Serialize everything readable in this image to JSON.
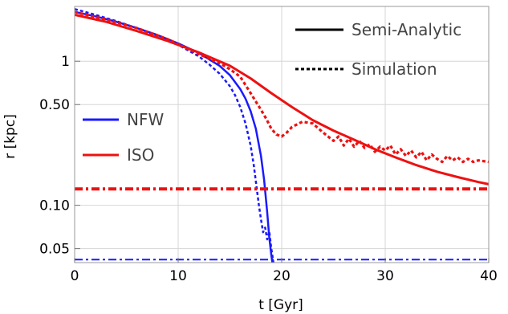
{
  "chart_data": {
    "type": "line",
    "xlabel": "t [Gyr]",
    "ylabel": "r [kpc]",
    "xlim": [
      0,
      40
    ],
    "ylim": [
      0.04,
      2.4
    ],
    "yscale": "log",
    "grid": true,
    "xticks": [
      0,
      10,
      20,
      30,
      40
    ],
    "xtick_labels": [
      "0",
      "10",
      "20",
      "30",
      "40"
    ],
    "yticks": [
      0.05,
      0.1,
      0.5,
      1
    ],
    "ytick_labels": [
      "0.05",
      "0.10",
      "0.50",
      "1"
    ],
    "legend_style": {
      "position": "top-right",
      "entries": [
        {
          "label": "Semi-Analytic",
          "linestyle": "solid"
        },
        {
          "label": "Simulation",
          "linestyle": "dotted"
        }
      ]
    },
    "legend_profile": {
      "position": "left",
      "entries": [
        {
          "label": "NFW",
          "color": "#1a1aff"
        },
        {
          "label": "ISO",
          "color": "#ee1111"
        }
      ]
    },
    "series": [
      {
        "profile": "NFW",
        "kind": "semi-analytic",
        "color": "#1a1aff",
        "linestyle": "solid",
        "x": [
          0,
          2,
          4,
          6,
          8,
          10,
          12,
          14,
          15,
          16,
          16.5,
          17,
          17.5,
          18,
          18.3,
          18.6,
          18.8,
          19.0,
          19.1
        ],
        "y": [
          2.2,
          2.05,
          1.88,
          1.7,
          1.52,
          1.33,
          1.14,
          0.93,
          0.8,
          0.64,
          0.55,
          0.45,
          0.34,
          0.22,
          0.15,
          0.09,
          0.06,
          0.045,
          0.04
        ]
      },
      {
        "profile": "NFW",
        "kind": "simulation",
        "color": "#1a1aff",
        "linestyle": "dotted",
        "x": [
          0,
          2,
          4,
          6,
          8,
          10,
          12,
          13,
          14,
          15,
          15.5,
          16,
          16.5,
          17,
          17.3,
          17.6,
          17.8,
          18.0,
          18.2,
          18.4,
          18.6,
          18.8,
          19.0,
          19.2
        ],
        "y": [
          2.3,
          2.1,
          1.9,
          1.7,
          1.5,
          1.3,
          1.08,
          0.95,
          0.82,
          0.67,
          0.58,
          0.48,
          0.37,
          0.26,
          0.19,
          0.13,
          0.1,
          0.08,
          0.065,
          0.07,
          0.058,
          0.066,
          0.05,
          0.04
        ]
      },
      {
        "profile": "ISO",
        "kind": "semi-analytic",
        "color": "#ee1111",
        "linestyle": "solid",
        "x": [
          0,
          3,
          6,
          9,
          12,
          15,
          17,
          19,
          21,
          23,
          25,
          27,
          29,
          31,
          33,
          35,
          37,
          39,
          40
        ],
        "y": [
          2.1,
          1.88,
          1.62,
          1.38,
          1.15,
          0.93,
          0.76,
          0.6,
          0.48,
          0.39,
          0.33,
          0.285,
          0.245,
          0.215,
          0.19,
          0.171,
          0.157,
          0.145,
          0.14
        ]
      },
      {
        "profile": "ISO",
        "kind": "simulation",
        "color": "#ee1111",
        "linestyle": "dotted",
        "x": [
          0,
          3,
          6,
          9,
          12,
          14,
          15,
          16,
          17,
          18,
          18.5,
          19,
          19.5,
          20,
          20.5,
          21,
          22,
          23,
          24,
          25,
          25.5,
          26,
          26.5,
          27,
          27.5,
          28,
          28.5,
          29,
          29.5,
          30,
          30.5,
          31,
          31.5,
          32,
          32.5,
          33,
          33.5,
          34,
          34.5,
          35,
          35.5,
          36,
          36.5,
          37,
          37.5,
          38,
          38.5,
          39,
          40
        ],
        "y": [
          2.2,
          1.95,
          1.7,
          1.42,
          1.12,
          0.97,
          0.88,
          0.78,
          0.6,
          0.46,
          0.4,
          0.34,
          0.31,
          0.3,
          0.32,
          0.35,
          0.38,
          0.37,
          0.32,
          0.28,
          0.3,
          0.26,
          0.29,
          0.255,
          0.28,
          0.25,
          0.265,
          0.235,
          0.255,
          0.24,
          0.26,
          0.225,
          0.245,
          0.22,
          0.24,
          0.215,
          0.235,
          0.205,
          0.225,
          0.21,
          0.2,
          0.22,
          0.205,
          0.215,
          0.2,
          0.21,
          0.2,
          0.205,
          0.2
        ]
      },
      {
        "profile": "ISO",
        "kind": "reference",
        "color": "#ee1111",
        "linestyle": "dashdot",
        "x": [
          0,
          40
        ],
        "y": [
          0.13,
          0.13
        ]
      },
      {
        "profile": "NFW",
        "kind": "reference",
        "color": "#1a1aff",
        "linestyle": "dashdot",
        "x": [
          0,
          40
        ],
        "y": [
          0.042,
          0.042
        ]
      }
    ]
  }
}
